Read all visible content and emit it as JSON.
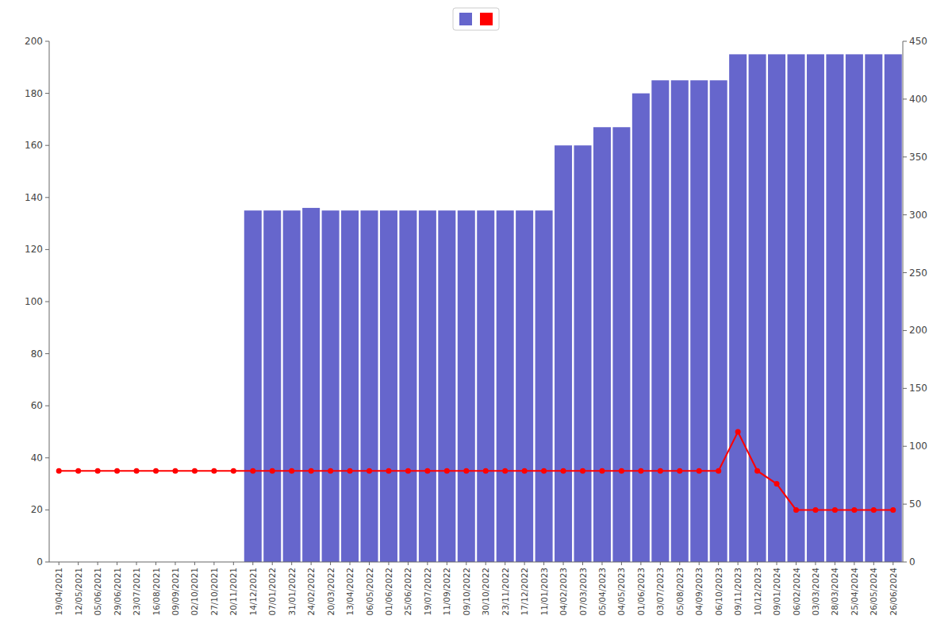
{
  "chart_data": {
    "type": "bar",
    "categories": [
      "19/04/2021",
      "12/05/2021",
      "05/06/2021",
      "29/06/2021",
      "23/07/2021",
      "16/08/2021",
      "09/09/2021",
      "02/10/2021",
      "27/10/2021",
      "20/11/2021",
      "14/12/2021",
      "07/01/2022",
      "31/01/2022",
      "24/02/2022",
      "20/03/2022",
      "13/04/2022",
      "06/05/2022",
      "01/06/2022",
      "25/06/2022",
      "19/07/2022",
      "11/09/2022",
      "09/10/2022",
      "30/10/2022",
      "23/11/2022",
      "17/12/2022",
      "11/01/2023",
      "04/02/2023",
      "07/03/2023",
      "05/04/2023",
      "04/05/2023",
      "01/06/2023",
      "03/07/2023",
      "05/08/2023",
      "04/09/2023",
      "06/10/2023",
      "09/11/2023",
      "10/12/2023",
      "09/01/2024",
      "06/02/2024",
      "03/03/2024",
      "28/03/2024",
      "25/04/2024",
      "26/05/2024",
      "26/06/2024"
    ],
    "series": [
      {
        "type": "bar",
        "color": "#6666cc",
        "values": [
          0,
          0,
          0,
          0,
          0,
          0,
          0,
          0,
          0,
          0,
          135,
          135,
          135,
          136,
          135,
          135,
          135,
          135,
          135,
          135,
          135,
          135,
          135,
          135,
          135,
          135,
          160,
          160,
          167,
          167,
          180,
          185,
          185,
          185,
          185,
          195,
          195,
          195,
          195,
          195,
          195,
          195,
          195,
          195
        ]
      },
      {
        "type": "line",
        "color": "#ff0000",
        "marker": "circle",
        "values": [
          35,
          35,
          35,
          35,
          35,
          35,
          35,
          35,
          35,
          35,
          35,
          35,
          35,
          35,
          35,
          35,
          35,
          35,
          35,
          35,
          35,
          35,
          35,
          35,
          35,
          35,
          35,
          35,
          35,
          35,
          35,
          35,
          35,
          35,
          35,
          50,
          35,
          30,
          20,
          20,
          20,
          20,
          20,
          20
        ]
      }
    ],
    "ylim": [
      0,
      200
    ],
    "yticks": [
      0,
      20,
      40,
      60,
      80,
      100,
      120,
      140,
      160,
      180,
      200
    ],
    "y2lim": [
      0,
      450
    ],
    "y2ticks": [
      0,
      50,
      100,
      150,
      200,
      250,
      300,
      350,
      400,
      450
    ],
    "grid": false,
    "legend": "top"
  }
}
